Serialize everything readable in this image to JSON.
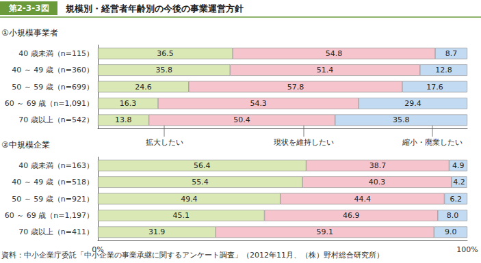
{
  "header": {
    "label": "第2-3-3図",
    "title": "規模別・経営者年齢別の今後の事業運営方針"
  },
  "source": "資料：中小企業庁委託「中小企業の事業承継に関するアンケート調査」（2012年11月、（株）野村総合研究所）",
  "chart_data": [
    {
      "type": "bar",
      "title": "①小規模事業者",
      "orientation": "horizontal",
      "stacked": true,
      "data_labels": true,
      "grid": false,
      "tick_labels": "y",
      "categories": [
        "40 歳未満（n=115）",
        "40 ～ 49 歳（n=360）",
        "50 ～ 59 歳（n=699）",
        "60 ～ 69 歳（n=1,091）",
        "70 歳以上（n=542）"
      ],
      "xlim": [
        0,
        100
      ],
      "series": [
        {
          "name": "拡大したい",
          "color": "#d9e8b5",
          "values": [
            36.5,
            35.8,
            24.6,
            16.3,
            13.8
          ]
        },
        {
          "name": "現状を維持したい",
          "color": "#f6c4cc",
          "values": [
            54.8,
            51.4,
            57.8,
            54.3,
            50.4
          ]
        },
        {
          "name": "縮小・廃業したい",
          "color": "#c3dbf2",
          "values": [
            8.7,
            12.8,
            17.6,
            29.4,
            35.8
          ]
        }
      ]
    },
    {
      "type": "bar",
      "title": "②中規模企業",
      "orientation": "horizontal",
      "stacked": true,
      "data_labels": true,
      "grid": false,
      "categories": [
        "40 歳未満（n=163）",
        "40 ～ 49 歳（n=518）",
        "50 ～ 59 歳（n=921）",
        "60 ～ 69 歳（n=1,197）",
        "70 歳以上（n=411）"
      ],
      "xlim": [
        0,
        100
      ],
      "xticks": [
        {
          "value": 0,
          "label": "0%"
        },
        {
          "value": 100,
          "label": "100%"
        }
      ],
      "series": [
        {
          "name": "拡大したい",
          "color": "#d9e8b5",
          "values": [
            56.4,
            55.4,
            49.4,
            45.1,
            31.9
          ]
        },
        {
          "name": "現状を維持したい",
          "color": "#f6c4cc",
          "values": [
            38.7,
            40.3,
            44.4,
            46.9,
            59.1
          ]
        },
        {
          "name": "縮小・廃業したい",
          "color": "#c3dbf2",
          "values": [
            4.9,
            4.2,
            6.2,
            8.0,
            9.0
          ],
          "value_labels": [
            "4.9",
            "4.2",
            "6.2",
            "8.0",
            "9.0"
          ]
        }
      ]
    }
  ]
}
